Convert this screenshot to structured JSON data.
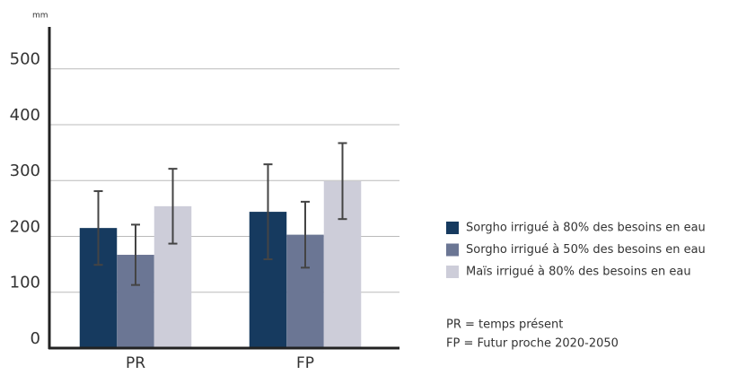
{
  "chart_data": {
    "type": "bar",
    "unit_label": "mm",
    "categories": [
      "PR",
      "FP"
    ],
    "series": [
      {
        "name": "Sorgho irrigué à 80% des besoins en eau",
        "color": "#163a5f",
        "values": [
          215,
          244
        ],
        "errors": [
          66,
          85
        ]
      },
      {
        "name": "Sorgho irrigué à 50% des besoins en eau",
        "color": "#6b7694",
        "values": [
          167,
          203
        ],
        "errors": [
          54,
          59
        ]
      },
      {
        "name": "Maïs irrigué à 80% des besoins en eau",
        "color": "#cdcdd9",
        "values": [
          254,
          299
        ],
        "errors": [
          67,
          68
        ]
      }
    ],
    "ylim": [
      0,
      575
    ],
    "yticks": [
      0,
      100,
      200,
      300,
      400,
      500
    ],
    "grid": true,
    "notes": [
      "PR = temps présent",
      "FP = Futur proche 2020-2050"
    ]
  }
}
